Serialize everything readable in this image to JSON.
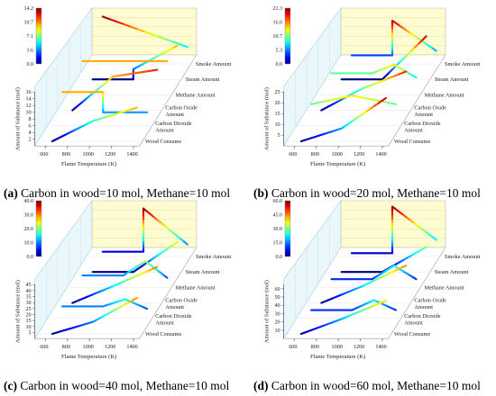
{
  "chart_data": [
    {
      "type": "line3d",
      "panel_label": "(a)",
      "caption": "Carbon in wood=10 mol, Methane=10 mol",
      "xlabel": "Flame Temperature (K)",
      "ylabel": "Amount of Substance (mol)",
      "x_ticks": [
        "600",
        "800",
        "1000",
        "1200",
        "1400"
      ],
      "xlim": [
        500,
        1450
      ],
      "y_ticks": [
        "2",
        "4",
        "6",
        "8",
        "10",
        "12",
        "14",
        "16"
      ],
      "ylim": [
        0,
        16
      ],
      "colorbar_ticks": [
        "14.2",
        "10.7",
        "7.1",
        "3.6",
        "0.0"
      ],
      "colorbar_range": [
        0,
        14.2
      ],
      "series_labels": [
        "Smoke Amount",
        "Steam Amount",
        "Methane Amount",
        "Carbon Oxide Amount",
        "Carbon Dioxide Amount",
        "Wood Consume"
      ],
      "series": [
        {
          "name": "Smoke Amount",
          "x": [
            630,
            1400
          ],
          "y": [
            14,
            5
          ]
        },
        {
          "name": "Steam Amount",
          "x": [
            630,
            1000,
            1000,
            1400
          ],
          "y": [
            0,
            0,
            3,
            10
          ]
        },
        {
          "name": "Methane Amount",
          "x": [
            630,
            1000,
            1400
          ],
          "y": [
            10,
            10,
            10
          ]
        },
        {
          "name": "Carbon Oxide Amount",
          "x": [
            630,
            1000,
            1400
          ],
          "y": [
            0,
            10,
            12
          ]
        },
        {
          "name": "Carbon Dioxide Amount",
          "x": [
            630,
            1000,
            1000,
            1400
          ],
          "y": [
            10,
            10,
            4,
            4
          ]
        },
        {
          "name": "Wood Consume",
          "x": [
            630,
            1000,
            1400
          ],
          "y": [
            0,
            6,
            10
          ]
        }
      ]
    },
    {
      "type": "line3d",
      "panel_label": "(b)",
      "caption": "Carbon in wood=20 mol, Methane=10 mol",
      "xlabel": "Flame Temperature (K)",
      "ylabel": "Amount of Substance (mol)",
      "x_ticks": [
        "600",
        "800",
        "1000",
        "1200",
        "1400"
      ],
      "xlim": [
        500,
        1450
      ],
      "y_ticks": [
        "5",
        "10",
        "15",
        "20",
        "25"
      ],
      "ylim": [
        0,
        25
      ],
      "colorbar_ticks": [
        "21.3",
        "16.0",
        "10.7",
        "5.3",
        "0.0"
      ],
      "colorbar_range": [
        0,
        21.3
      ],
      "series_labels": [
        "Smoke Amount",
        "Steam Amount",
        "Methane Amount",
        "Carbon Oxide Amount",
        "Carbon Dioxide Amount",
        "Wood Consume"
      ],
      "series": [
        {
          "name": "Smoke Amount",
          "x": [
            630,
            1000,
            1000,
            1400
          ],
          "y": [
            4,
            4,
            20,
            6
          ]
        },
        {
          "name": "Steam Amount",
          "x": [
            630,
            1000,
            1400
          ],
          "y": [
            0,
            0,
            20
          ]
        },
        {
          "name": "Methane Amount",
          "x": [
            630,
            1000,
            1200,
            1400
          ],
          "y": [
            10,
            10,
            14,
            8
          ]
        },
        {
          "name": "Carbon Oxide Amount",
          "x": [
            630,
            1000,
            1400
          ],
          "y": [
            0,
            10,
            18
          ]
        },
        {
          "name": "Carbon Dioxide Amount",
          "x": [
            630,
            1000,
            1400
          ],
          "y": [
            10,
            14,
            10
          ]
        },
        {
          "name": "Wood Consume",
          "x": [
            630,
            1000,
            1400
          ],
          "y": [
            0,
            6,
            20
          ]
        }
      ]
    },
    {
      "type": "line3d",
      "panel_label": "(c)",
      "caption": "Carbon in wood=40 mol, Methane=10 mol",
      "xlabel": "Flame Temperature (K)",
      "ylabel": "Amount of Substance (mol)",
      "x_ticks": [
        "600",
        "800",
        "1000",
        "1200",
        "1400"
      ],
      "xlim": [
        500,
        1450
      ],
      "y_ticks": [
        "5",
        "10",
        "15",
        "20",
        "25",
        "30",
        "35",
        "40",
        "45"
      ],
      "ylim": [
        0,
        45
      ],
      "colorbar_ticks": [
        "40.0",
        "30.0",
        "20.0",
        "10.0",
        "0.0"
      ],
      "colorbar_range": [
        0,
        40
      ],
      "series_labels": [
        "Smoke Amount",
        "Steam Amount",
        "Methane Amount",
        "Carbon Oxide Amount",
        "Carbon Dioxide Amount",
        "Wood Consume"
      ],
      "series": [
        {
          "name": "Smoke Amount",
          "x": [
            630,
            1000,
            1000,
            1400
          ],
          "y": [
            4,
            4,
            40,
            10
          ]
        },
        {
          "name": "Steam Amount",
          "x": [
            630,
            1000,
            1400
          ],
          "y": [
            0,
            0,
            25
          ]
        },
        {
          "name": "Methane Amount",
          "x": [
            630,
            1000,
            1200,
            1400
          ],
          "y": [
            10,
            10,
            22,
            8
          ]
        },
        {
          "name": "Carbon Oxide Amount",
          "x": [
            630,
            1000,
            1400
          ],
          "y": [
            0,
            14,
            30
          ]
        },
        {
          "name": "Carbon Dioxide Amount",
          "x": [
            630,
            1000,
            1200,
            1400
          ],
          "y": [
            10,
            10,
            16,
            8
          ]
        },
        {
          "name": "Wood Consume",
          "x": [
            630,
            1000,
            1400
          ],
          "y": [
            0,
            10,
            30
          ]
        }
      ]
    },
    {
      "type": "line3d",
      "panel_label": "(d)",
      "caption": "Carbon in wood=60 mol, Methane=10 mol",
      "xlabel": "Flame Temperature (K)",
      "ylabel": "Amount of Substance (mol)",
      "x_ticks": [
        "600",
        "800",
        "1000",
        "1200",
        "1400"
      ],
      "xlim": [
        500,
        1450
      ],
      "y_ticks": [
        "10",
        "20",
        "30",
        "40",
        "50",
        "60"
      ],
      "ylim": [
        0,
        65
      ],
      "colorbar_ticks": [
        "60.0",
        "45.0",
        "30.0",
        "15.0",
        "0.0"
      ],
      "colorbar_range": [
        0,
        60
      ],
      "series_labels": [
        "Smoke Amount",
        "Steam Amount",
        "Methane Amount",
        "Carbon Oxide Amount",
        "Carbon Dioxide Amount",
        "Wood Consume"
      ],
      "series": [
        {
          "name": "Smoke Amount",
          "x": [
            630,
            1000,
            1000,
            1400
          ],
          "y": [
            4,
            4,
            60,
            20
          ]
        },
        {
          "name": "Steam Amount",
          "x": [
            630,
            1000,
            1400
          ],
          "y": [
            0,
            0,
            30
          ]
        },
        {
          "name": "Methane Amount",
          "x": [
            630,
            1000,
            1200,
            1400
          ],
          "y": [
            10,
            10,
            26,
            10
          ]
        },
        {
          "name": "Carbon Oxide Amount",
          "x": [
            630,
            1000,
            1400
          ],
          "y": [
            0,
            20,
            45
          ]
        },
        {
          "name": "Carbon Dioxide Amount",
          "x": [
            630,
            1000,
            1200,
            1400
          ],
          "y": [
            10,
            10,
            22,
            10
          ]
        },
        {
          "name": "Wood Consume",
          "x": [
            630,
            1000,
            1400
          ],
          "y": [
            0,
            18,
            40
          ]
        }
      ]
    }
  ]
}
